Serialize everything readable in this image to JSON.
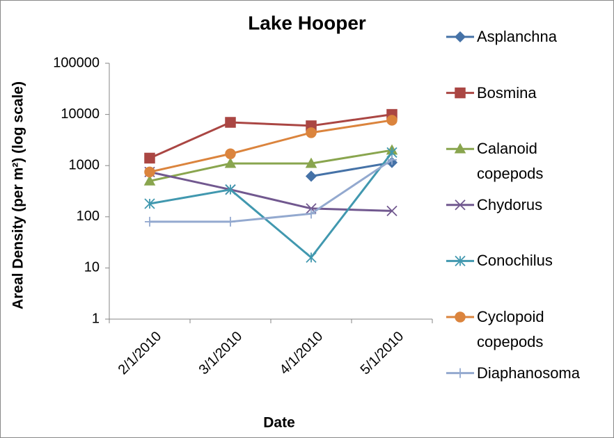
{
  "chart_data": {
    "type": "line",
    "title": "Lake Hooper",
    "x_label": "Date",
    "y_label": "Areal Density (per m²) (log scale)",
    "categories": [
      "2/1/2010",
      "3/1/2010",
      "4/1/2010",
      "5/1/2010"
    ],
    "log_scale": true,
    "ylim": [
      1,
      100000
    ],
    "yticks": [
      1,
      10,
      100,
      1000,
      10000,
      100000
    ],
    "grid": false,
    "legend": "right",
    "series": [
      {
        "name": "Asplanchna",
        "color": "#4572a7",
        "marker": "diamond",
        "values": [
          null,
          null,
          620,
          1150
        ]
      },
      {
        "name": "Bosmina",
        "color": "#aa4643",
        "marker": "square",
        "values": [
          1400,
          7000,
          6000,
          10000
        ]
      },
      {
        "name": "Calanoid copepods",
        "color": "#89a54e",
        "marker": "triangle",
        "values": [
          500,
          1100,
          1100,
          2000
        ]
      },
      {
        "name": "Chydorus",
        "color": "#71588f",
        "marker": "x",
        "values": [
          750,
          340,
          145,
          130
        ]
      },
      {
        "name": "Conochilus",
        "color": "#4198af",
        "marker": "star",
        "values": [
          180,
          340,
          16,
          1800
        ]
      },
      {
        "name": "Cyclopoid copepods",
        "color": "#db843d",
        "marker": "circle",
        "values": [
          750,
          1700,
          4400,
          7700
        ]
      },
      {
        "name": "Diaphanosoma",
        "color": "#93a9cf",
        "marker": "plus",
        "values": [
          80,
          80,
          115,
          1300
        ]
      }
    ]
  }
}
